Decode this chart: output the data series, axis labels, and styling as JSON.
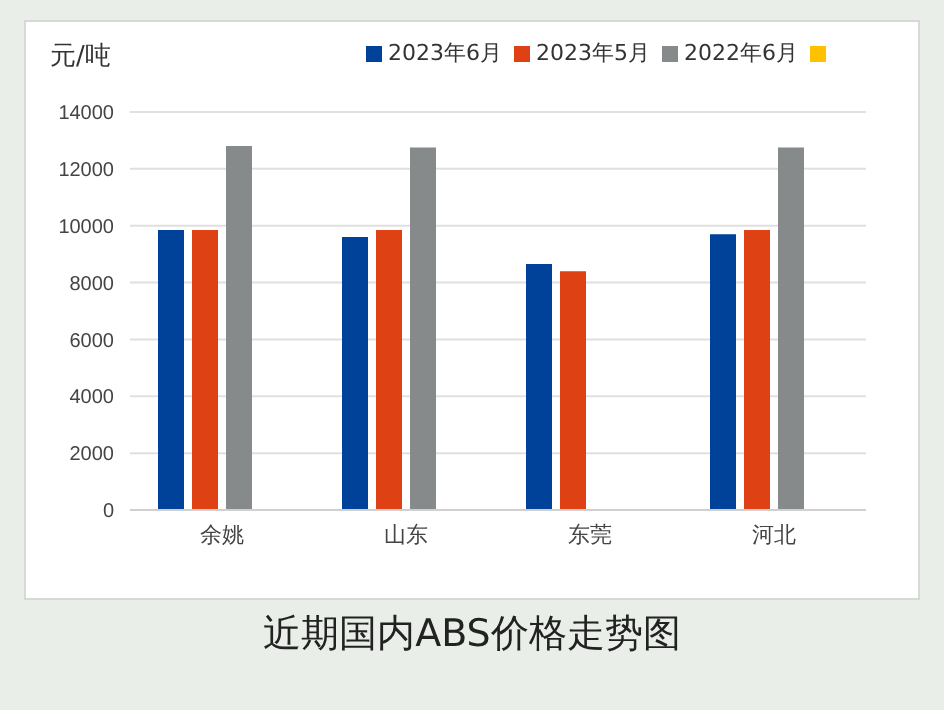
{
  "chart_data": {
    "type": "bar",
    "title": "近期国内ABS价格走势图",
    "ylabel": "元/吨",
    "categories": [
      "余姚",
      "山东",
      "东莞",
      "河北"
    ],
    "series": [
      {
        "name": "2023年6月",
        "color": "#004199",
        "values": [
          9850,
          9600,
          8650,
          9700
        ]
      },
      {
        "name": "2023年5月",
        "color": "#dd4114",
        "values": [
          9850,
          9850,
          8400,
          9850
        ]
      },
      {
        "name": "2022年6月",
        "color": "#878a8b",
        "values": [
          12800,
          12750,
          null,
          12750
        ]
      },
      {
        "color": "#ffc000",
        "values": [
          null,
          null,
          null,
          null
        ]
      }
    ],
    "ylim": [
      0,
      14000
    ],
    "yticks": [
      0,
      2000,
      4000,
      6000,
      8000,
      10000,
      12000,
      14000
    ],
    "grid": "y",
    "legend": "top right"
  }
}
